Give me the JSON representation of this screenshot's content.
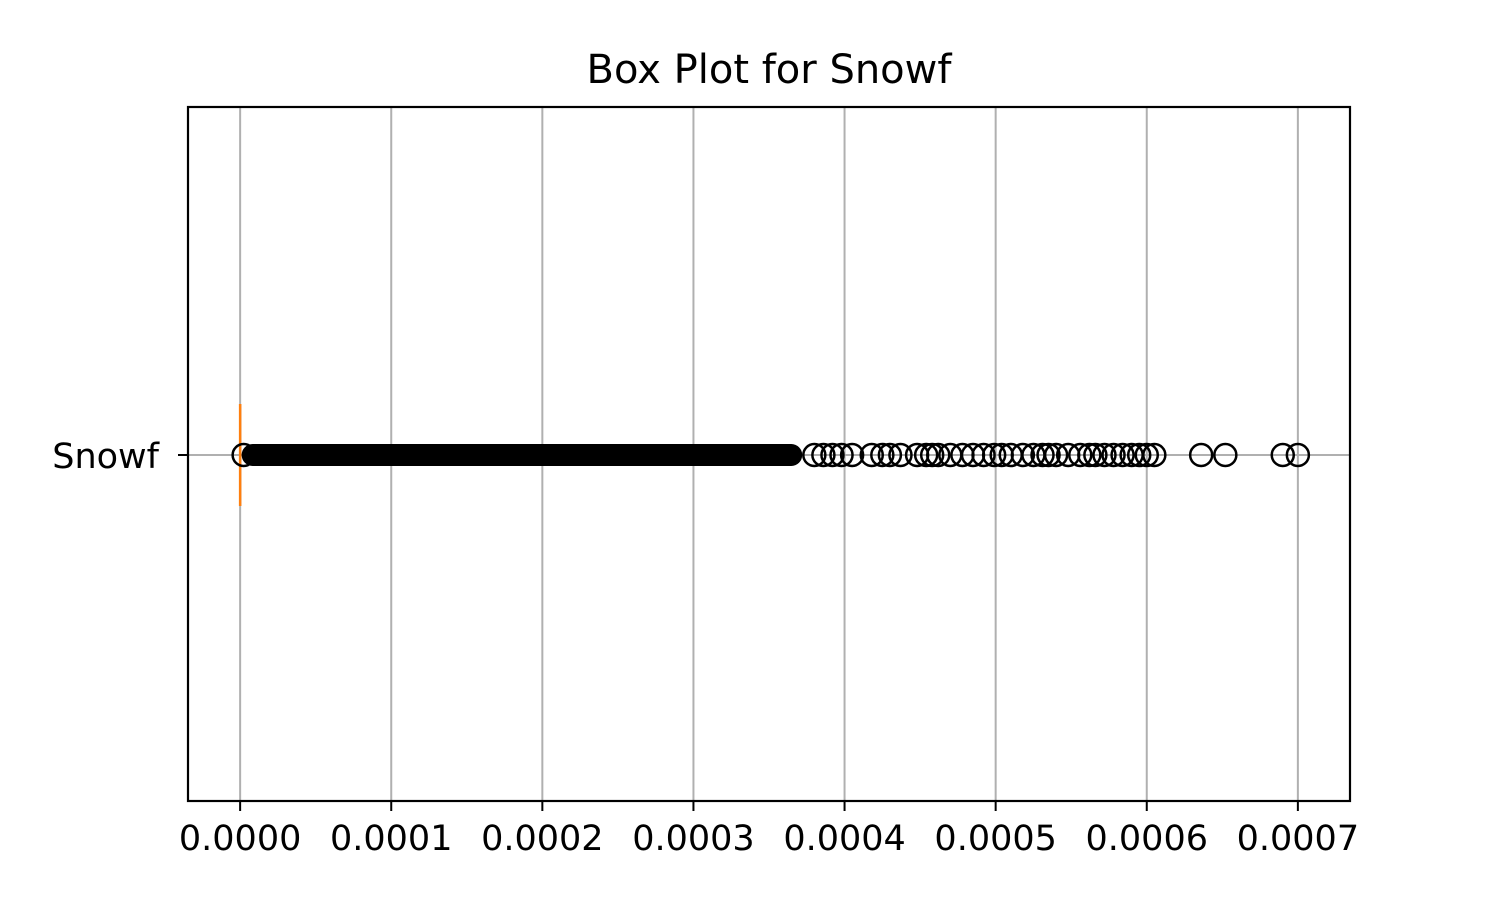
{
  "chart_data": {
    "type": "box",
    "orientation": "horizontal",
    "title": "Box Plot for Snowf",
    "xlabel": "",
    "ylabel": "",
    "xlim": [
      -3.45e-05,
      0.0007345
    ],
    "grid": true,
    "categories": [
      "Snowf"
    ],
    "xticks": [
      0.0,
      0.0001,
      0.0002,
      0.0003,
      0.0004,
      0.0005,
      0.0006,
      0.0007
    ],
    "xtick_labels": [
      "0.0000",
      "0.0001",
      "0.0002",
      "0.0003",
      "0.0004",
      "0.0005",
      "0.0006",
      "0.0007"
    ],
    "series": [
      {
        "min": 0.0,
        "q1": 0.0,
        "median": 0.0,
        "q3": 0.0,
        "max": 0.0,
        "outlier_band": [
          1e-06,
          0.000372
        ],
        "outliers": [
          0.00038,
          0.000386,
          0.000392,
          0.000398,
          0.000405,
          0.000418,
          0.000425,
          0.00043,
          0.000437,
          0.000448,
          0.000454,
          0.000458,
          0.000462,
          0.00047,
          0.000478,
          0.000485,
          0.000492,
          0.000499,
          0.000504,
          0.00051,
          0.000518,
          0.000525,
          0.000531,
          0.000535,
          0.00054,
          0.000548,
          0.000556,
          0.000562,
          0.000566,
          0.000572,
          0.000578,
          0.000584,
          0.00059,
          0.000595,
          0.0006,
          0.000605,
          0.000636,
          0.000652,
          0.00069,
          0.0007
        ]
      }
    ],
    "colors": {
      "outlier": "#000000",
      "median": "#ff7f0e",
      "grid": "#b0b0b0",
      "axes": "#000000"
    }
  }
}
